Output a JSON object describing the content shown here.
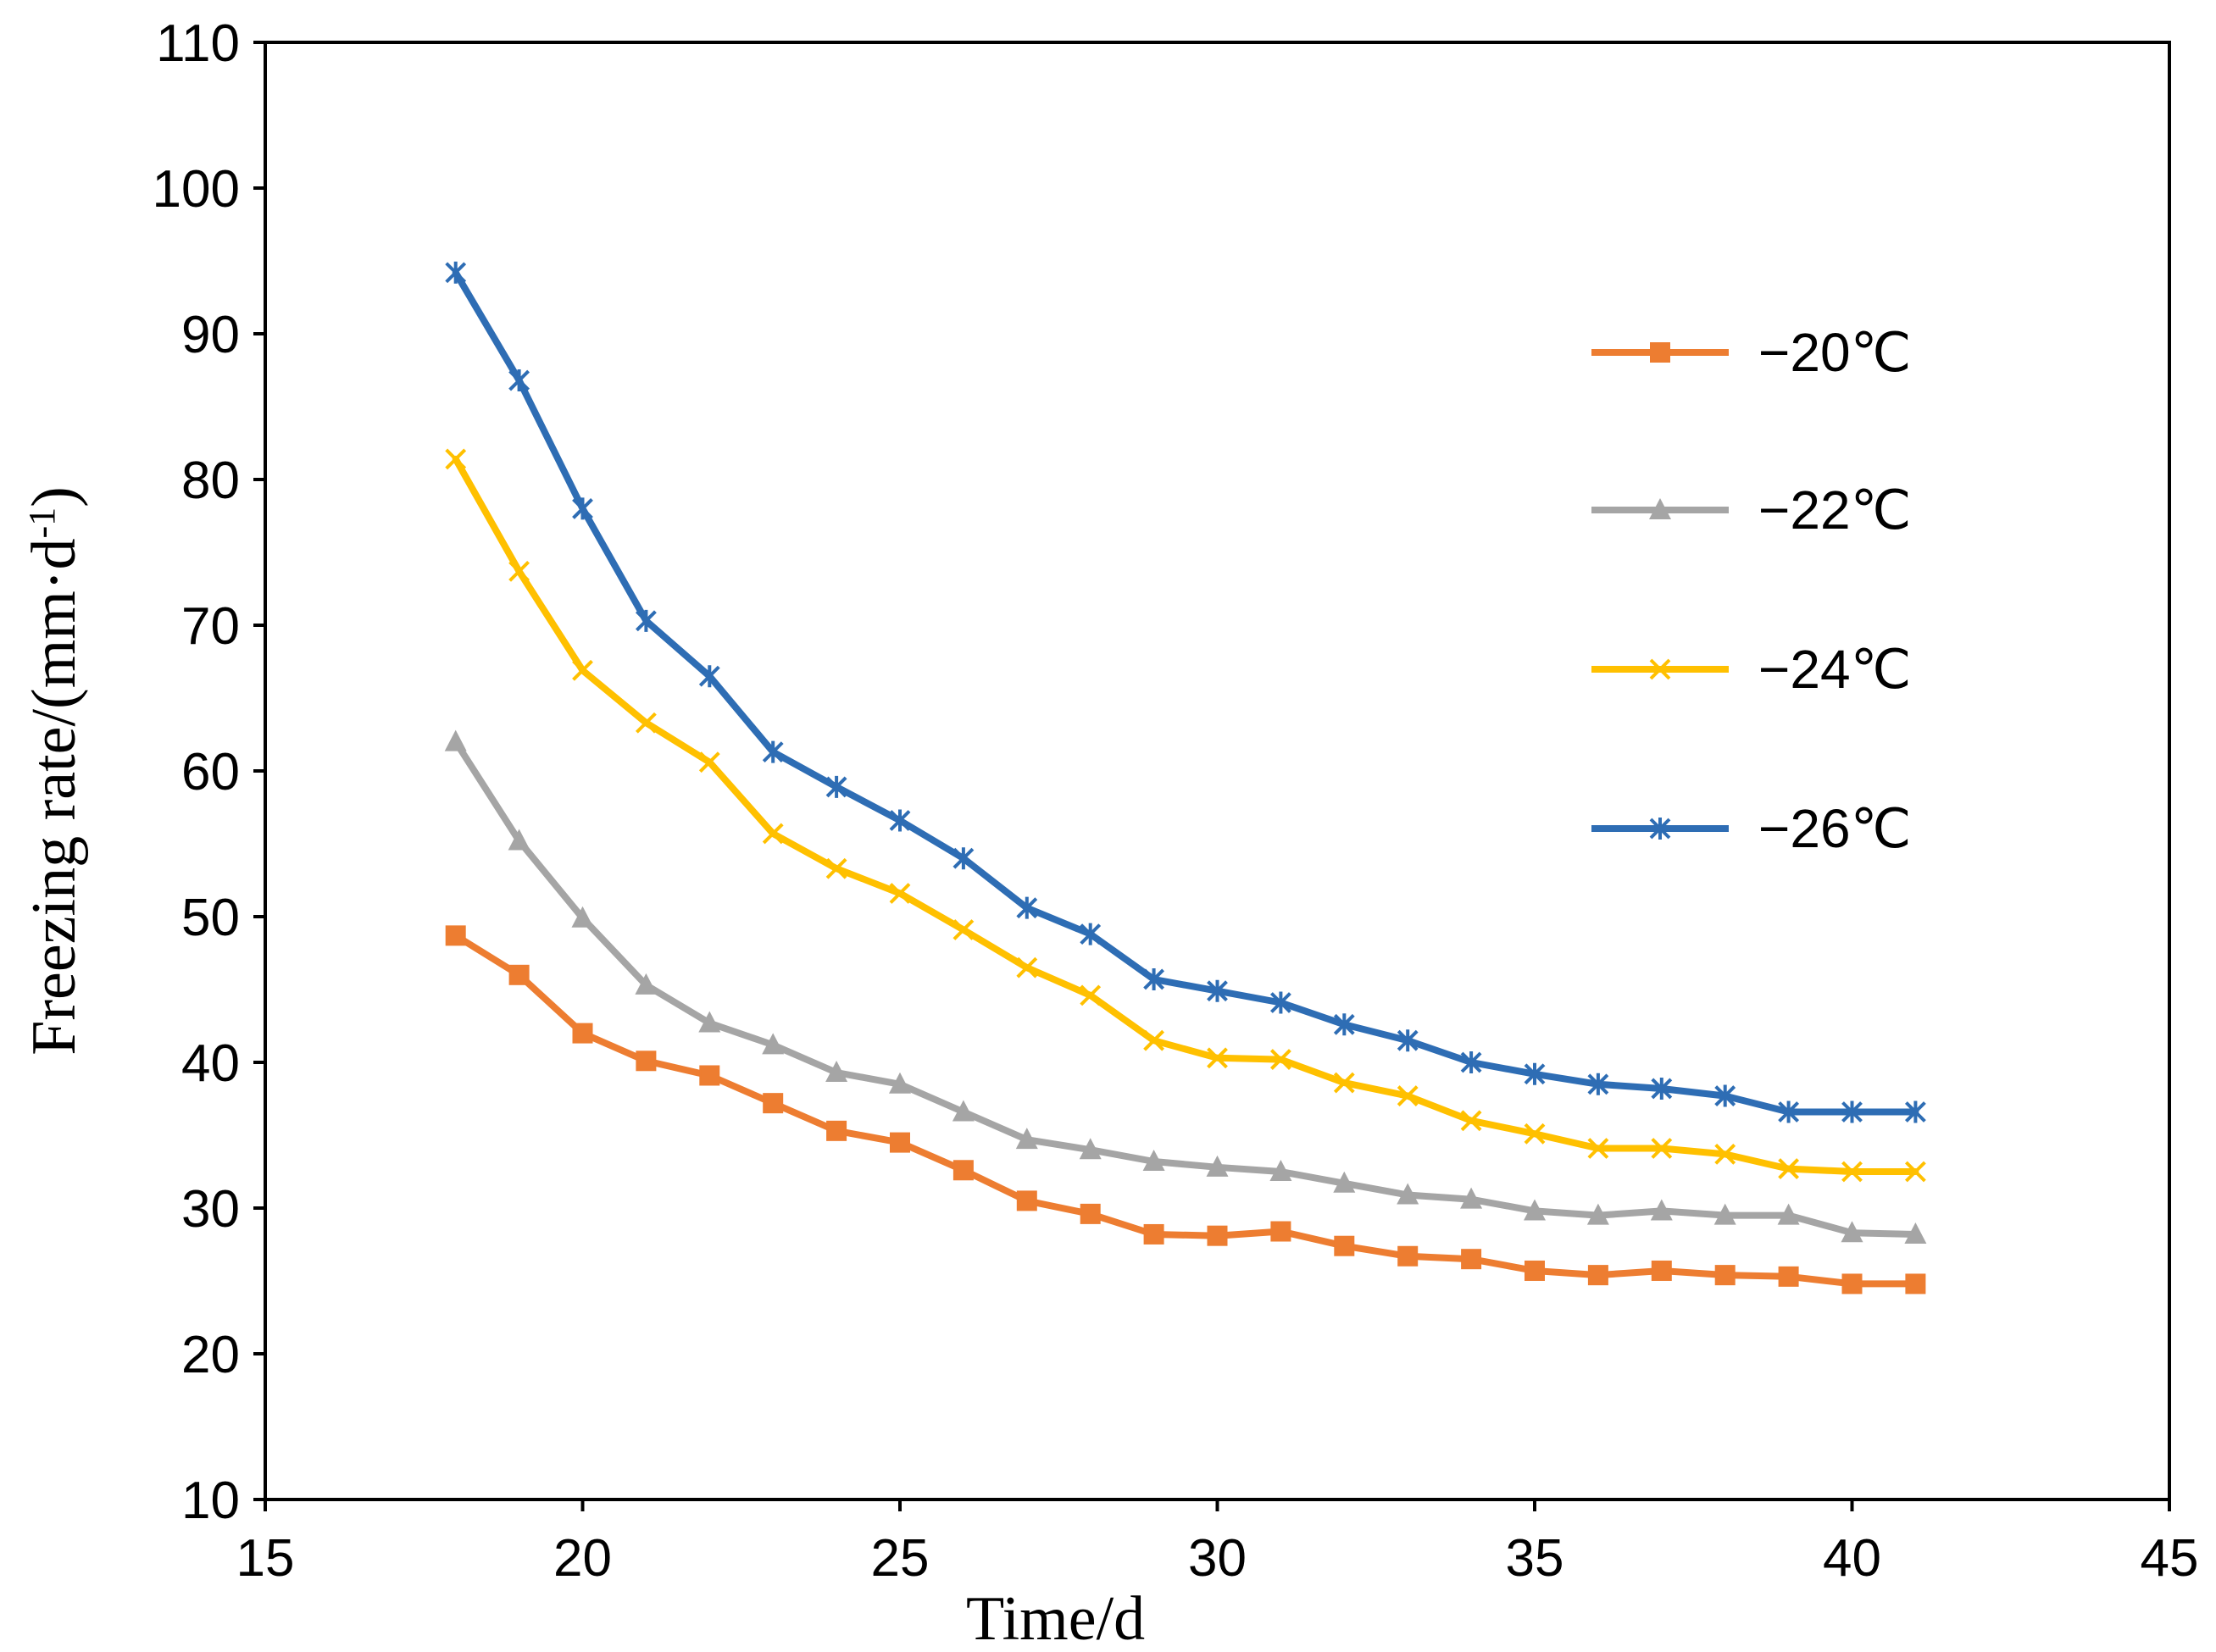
{
  "chart_data": {
    "type": "line",
    "title": "",
    "xlabel": "Time/d",
    "ylabel": "Freezing rate/(mm·d-1)",
    "xlim": [
      15,
      45
    ],
    "ylim": [
      10,
      110
    ],
    "xticks": [
      15,
      20,
      25,
      30,
      35,
      40,
      45
    ],
    "yticks": [
      10,
      20,
      30,
      40,
      50,
      60,
      70,
      80,
      90,
      100,
      110
    ],
    "grid": false,
    "legend_position": "right",
    "x": [
      18,
      19,
      20,
      21,
      22,
      23,
      24,
      25,
      26,
      27,
      28,
      29,
      30,
      31,
      32,
      33,
      34,
      35,
      36,
      37,
      38,
      39,
      40,
      41
    ],
    "series": [
      {
        "name": "−20℃",
        "color": "#ED7D31",
        "marker": "square",
        "values": [
          48.7,
          46.0,
          42.0,
          40.1,
          39.1,
          37.2,
          35.3,
          34.5,
          32.6,
          30.5,
          29.6,
          28.2,
          28.1,
          28.4,
          27.4,
          26.7,
          26.5,
          25.7,
          25.4,
          25.7,
          25.4,
          25.3,
          24.8,
          24.8
        ]
      },
      {
        "name": "−22℃",
        "color": "#A5A5A5",
        "marker": "triangle",
        "values": [
          62.0,
          55.2,
          49.9,
          45.3,
          42.7,
          41.2,
          39.3,
          38.5,
          36.6,
          34.7,
          34.0,
          33.2,
          32.8,
          32.5,
          31.7,
          30.9,
          30.6,
          29.8,
          29.5,
          29.8,
          29.5,
          29.5,
          28.3,
          28.2
        ]
      },
      {
        "name": "−24℃",
        "color": "#FFC000",
        "marker": "x",
        "values": [
          81.4,
          73.7,
          66.9,
          63.3,
          60.6,
          55.7,
          53.3,
          51.6,
          49.1,
          46.5,
          44.6,
          41.5,
          40.3,
          40.2,
          38.6,
          37.7,
          36.0,
          35.1,
          34.1,
          34.1,
          33.7,
          32.7,
          32.5,
          32.5
        ]
      },
      {
        "name": "−26℃",
        "color": "#2E6DB4",
        "marker": "star",
        "values": [
          94.2,
          86.8,
          78.0,
          70.3,
          66.5,
          61.3,
          58.9,
          56.6,
          54.0,
          50.6,
          48.8,
          45.7,
          44.9,
          44.1,
          42.6,
          41.5,
          40.0,
          39.2,
          38.5,
          38.2,
          37.7,
          36.6,
          36.6,
          36.6
        ]
      }
    ]
  }
}
